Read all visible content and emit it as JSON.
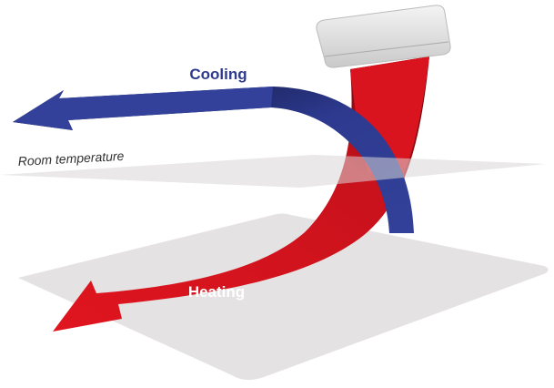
{
  "labels": {
    "cooling": "Cooling",
    "room_temperature": "Room temperature",
    "heating": "Heating"
  }
}
